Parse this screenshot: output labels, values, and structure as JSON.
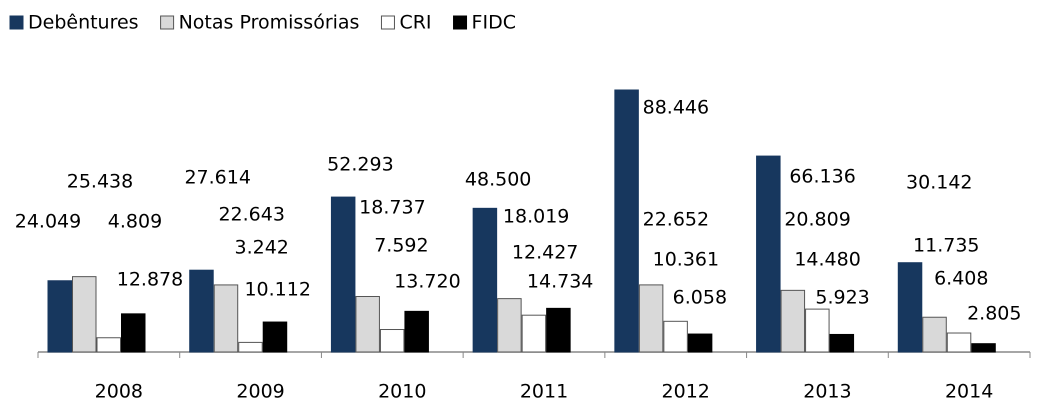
{
  "chart_data": {
    "type": "bar",
    "categories": [
      "2008",
      "2009",
      "2010",
      "2011",
      "2012",
      "2013",
      "2014"
    ],
    "series": [
      {
        "name": "Debêntures",
        "color": "#17375e",
        "values": [
          24049,
          27614,
          52293,
          48500,
          88446,
          66136,
          30142
        ],
        "value_labels": [
          "24.049",
          "27.614",
          "52.293",
          "48.500",
          "88.446",
          "66.136",
          "30.142"
        ]
      },
      {
        "name": "Notas Promissórias",
        "color": "#d9d9d9",
        "values": [
          25438,
          22643,
          18737,
          18019,
          22652,
          20809,
          11735
        ],
        "value_labels": [
          "25.438",
          "22.643",
          "18.737",
          "18.019",
          "22.652",
          "20.809",
          "11.735"
        ]
      },
      {
        "name": "CRI",
        "color": "#ffffff",
        "values": [
          4809,
          3242,
          7592,
          12427,
          10361,
          14480,
          6408
        ],
        "value_labels": [
          "4.809",
          "3.242",
          "7.592",
          "12.427",
          "10.361",
          "14.480",
          "6.408"
        ]
      },
      {
        "name": "FIDC",
        "color": "#000000",
        "values": [
          12878,
          10112,
          13720,
          14734,
          6058,
          5923,
          2805
        ],
        "value_labels": [
          "12.878",
          "10.112",
          "13.720",
          "14.734",
          "6.058",
          "5.923",
          "2.805"
        ]
      }
    ],
    "legend": "top-left"
  }
}
